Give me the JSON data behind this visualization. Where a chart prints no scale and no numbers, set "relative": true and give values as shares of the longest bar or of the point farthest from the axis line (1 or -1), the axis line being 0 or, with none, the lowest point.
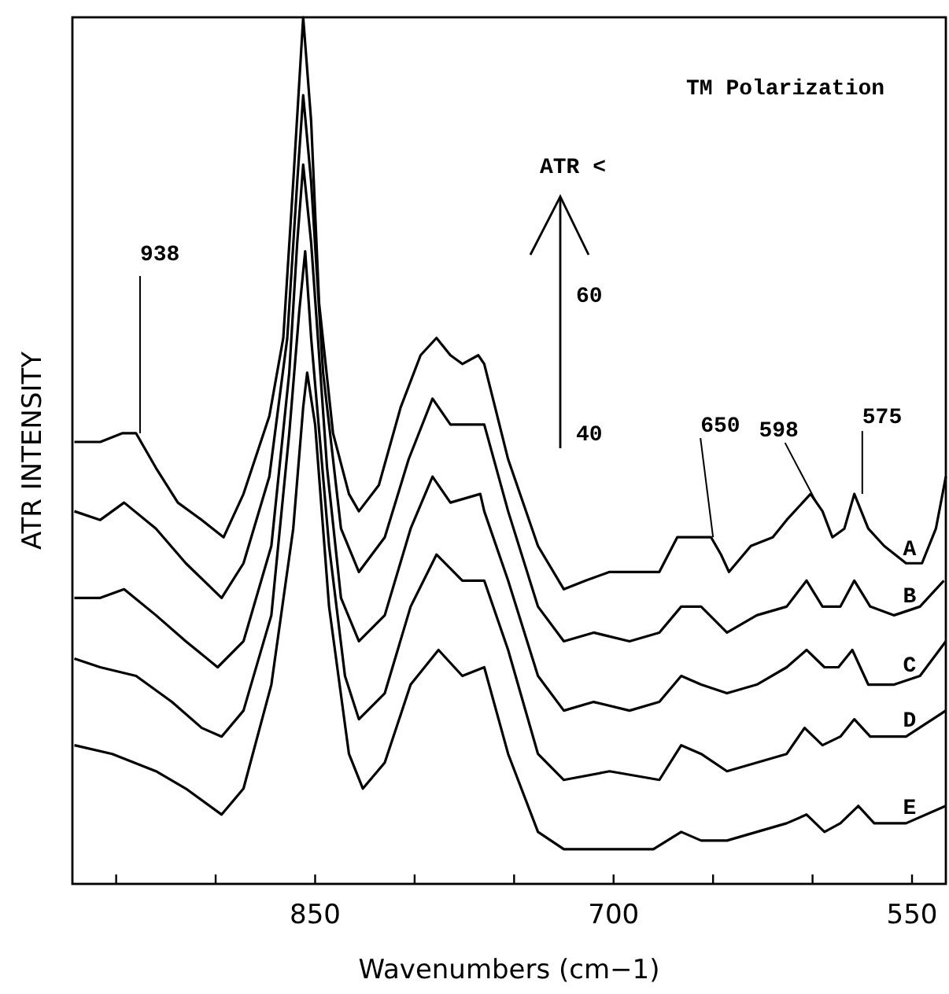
{
  "chart_data": {
    "type": "line",
    "relative": true,
    "xlabel": "Wavenumbers (cm−1)",
    "ylabel": "ATR INTENSITY",
    "xlim": [
      972,
      533
    ],
    "xticks": [
      {
        "value": 950,
        "label": null
      },
      {
        "value": 900,
        "label": null
      },
      850,
      {
        "value": 800,
        "label": null
      },
      {
        "value": 750,
        "label": null
      },
      700,
      {
        "value": 650,
        "label": null
      },
      {
        "value": 600,
        "label": null
      },
      550
    ],
    "grid": false,
    "legend": false,
    "marker": "none",
    "line_style": "solid",
    "series": [
      {
        "name": "A",
        "color": "#000000",
        "x": [
          971,
          967,
          958,
          947,
          940,
          930,
          919,
          907,
          896,
          886,
          873,
          866,
          861,
          856,
          852,
          848,
          841,
          833,
          828,
          818,
          807,
          797,
          789,
          782,
          776,
          768,
          765,
          753,
          738,
          725,
          714,
          702,
          689,
          677,
          668,
          659,
          651,
          646,
          642,
          631,
          620,
          613,
          605,
          601,
          595,
          590,
          584,
          579,
          572,
          564,
          553,
          545,
          538,
          533
        ],
        "values": [
          0.51,
          0.51,
          0.51,
          0.52,
          0.52,
          0.48,
          0.44,
          0.42,
          0.4,
          0.45,
          0.54,
          0.63,
          0.81,
          1.0,
          0.88,
          0.67,
          0.52,
          0.45,
          0.43,
          0.46,
          0.55,
          0.61,
          0.63,
          0.61,
          0.6,
          0.61,
          0.6,
          0.49,
          0.39,
          0.34,
          0.35,
          0.36,
          0.36,
          0.36,
          0.4,
          0.4,
          0.4,
          0.38,
          0.36,
          0.39,
          0.4,
          0.42,
          0.44,
          0.45,
          0.43,
          0.4,
          0.41,
          0.45,
          0.41,
          0.39,
          0.37,
          0.37,
          0.41,
          0.47
        ]
      },
      {
        "name": "B",
        "color": "#000000",
        "x": [
          971,
          958,
          946,
          930,
          915,
          897,
          886,
          873,
          864,
          859,
          856,
          852,
          846,
          837,
          828,
          815,
          803,
          791,
          782,
          770,
          765,
          753,
          738,
          725,
          710,
          692,
          677,
          666,
          656,
          643,
          628,
          613,
          603,
          595,
          586,
          579,
          571,
          559,
          546,
          534
        ],
        "values": [
          0.43,
          0.42,
          0.44,
          0.41,
          0.37,
          0.33,
          0.37,
          0.47,
          0.63,
          0.81,
          0.91,
          0.81,
          0.59,
          0.41,
          0.36,
          0.4,
          0.49,
          0.56,
          0.53,
          0.53,
          0.53,
          0.43,
          0.32,
          0.28,
          0.29,
          0.28,
          0.29,
          0.32,
          0.32,
          0.29,
          0.31,
          0.32,
          0.35,
          0.32,
          0.32,
          0.35,
          0.32,
          0.31,
          0.32,
          0.35
        ]
      },
      {
        "name": "C",
        "color": "#000000",
        "x": [
          971,
          958,
          946,
          930,
          915,
          899,
          886,
          872,
          863,
          859,
          856,
          852,
          844,
          837,
          828,
          815,
          802,
          791,
          782,
          767,
          765,
          753,
          738,
          725,
          710,
          692,
          677,
          666,
          656,
          643,
          628,
          613,
          603,
          594,
          587,
          580,
          572,
          559,
          546,
          533
        ],
        "values": [
          0.33,
          0.33,
          0.34,
          0.31,
          0.28,
          0.25,
          0.28,
          0.39,
          0.59,
          0.74,
          0.83,
          0.74,
          0.48,
          0.33,
          0.28,
          0.31,
          0.41,
          0.47,
          0.44,
          0.45,
          0.43,
          0.35,
          0.24,
          0.2,
          0.21,
          0.2,
          0.21,
          0.24,
          0.23,
          0.22,
          0.23,
          0.25,
          0.27,
          0.25,
          0.25,
          0.27,
          0.23,
          0.23,
          0.24,
          0.28
        ]
      },
      {
        "name": "D",
        "color": "#000000",
        "x": [
          971,
          958,
          940,
          922,
          907,
          897,
          886,
          872,
          863,
          858,
          855,
          852,
          843,
          835,
          828,
          815,
          802,
          789,
          776,
          765,
          753,
          738,
          725,
          702,
          677,
          666,
          656,
          643,
          628,
          613,
          604,
          595,
          586,
          579,
          571,
          553,
          533
        ],
        "values": [
          0.26,
          0.25,
          0.24,
          0.21,
          0.18,
          0.17,
          0.2,
          0.31,
          0.52,
          0.66,
          0.73,
          0.63,
          0.39,
          0.24,
          0.19,
          0.22,
          0.32,
          0.38,
          0.35,
          0.35,
          0.27,
          0.15,
          0.12,
          0.13,
          0.12,
          0.16,
          0.15,
          0.13,
          0.14,
          0.15,
          0.18,
          0.16,
          0.17,
          0.19,
          0.17,
          0.17,
          0.2
        ]
      },
      {
        "name": "E",
        "color": "#000000",
        "x": [
          971,
          952,
          930,
          915,
          897,
          886,
          872,
          861,
          856,
          854,
          850,
          843,
          833,
          826,
          815,
          802,
          788,
          776,
          765,
          753,
          738,
          725,
          702,
          680,
          666,
          656,
          643,
          628,
          613,
          603,
          594,
          586,
          577,
          569,
          553,
          533
        ],
        "values": [
          0.16,
          0.15,
          0.13,
          0.11,
          0.08,
          0.11,
          0.23,
          0.41,
          0.55,
          0.59,
          0.53,
          0.32,
          0.15,
          0.11,
          0.14,
          0.23,
          0.27,
          0.24,
          0.25,
          0.15,
          0.06,
          0.04,
          0.04,
          0.04,
          0.06,
          0.05,
          0.05,
          0.06,
          0.07,
          0.08,
          0.06,
          0.07,
          0.09,
          0.07,
          0.07,
          0.09
        ]
      }
    ],
    "annotations": [
      {
        "text": "938",
        "x": 938,
        "y": 0.52
      },
      {
        "text": "650",
        "x": 650,
        "y": 0.4
      },
      {
        "text": "598",
        "x": 598,
        "y": 0.44
      },
      {
        "text": "575",
        "x": 575,
        "y": 0.45
      },
      "TM Polarization",
      "ATR <",
      "60",
      "40"
    ]
  }
}
